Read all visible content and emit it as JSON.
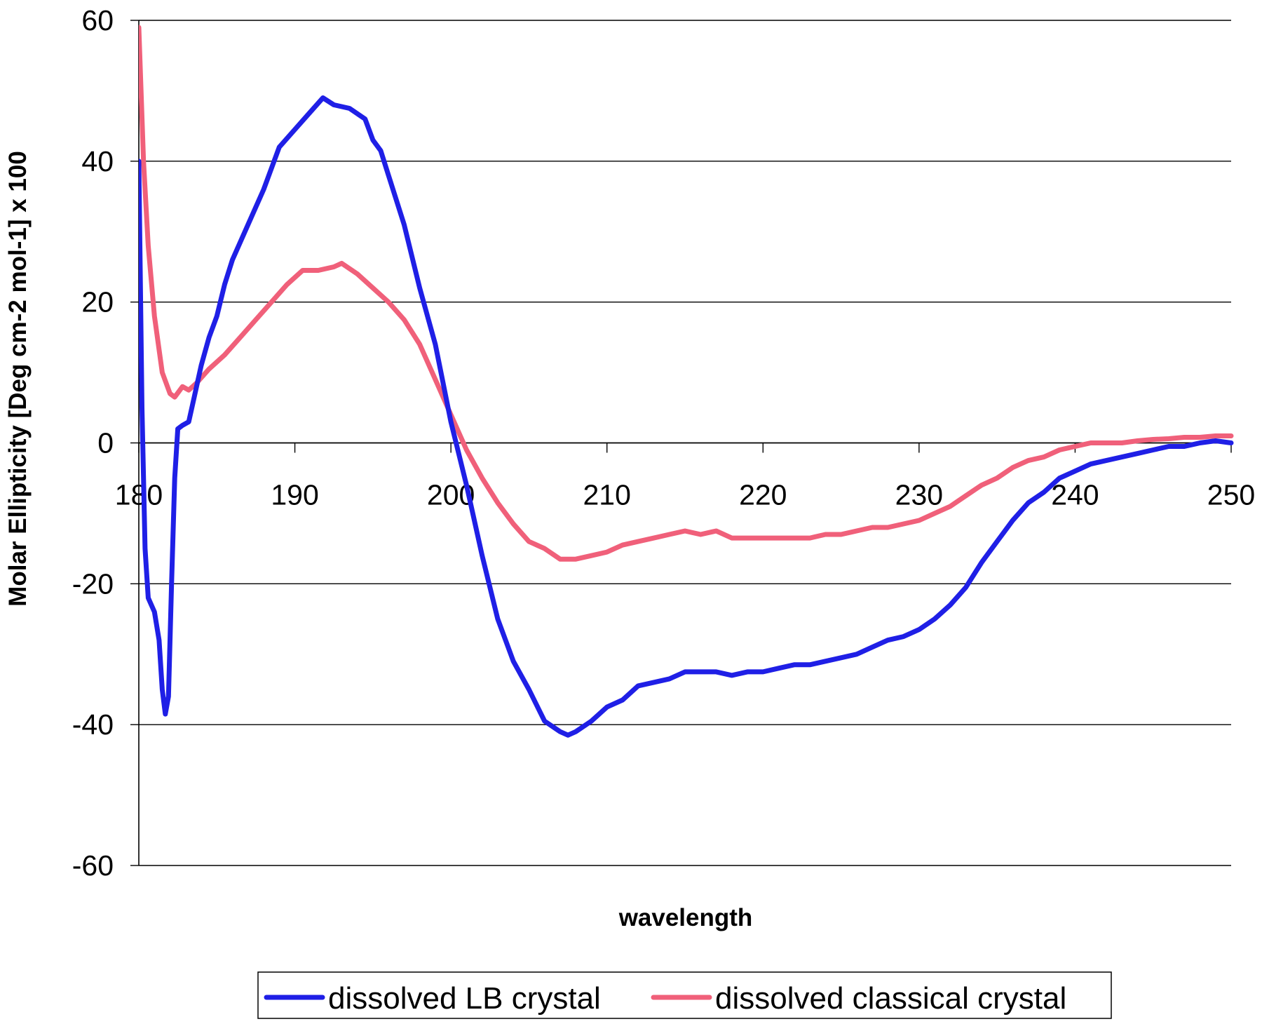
{
  "chart_data": {
    "type": "line",
    "xlabel": "wavelength",
    "ylabel": "Molar Ellipticity [Deg cm-2 mol-1] x 100",
    "xlim": [
      180,
      250
    ],
    "ylim": [
      -60,
      60
    ],
    "x_ticks": [
      "180",
      "190",
      "200",
      "210",
      "220",
      "230",
      "240",
      "250"
    ],
    "y_ticks": [
      "60",
      "40",
      "20",
      "0",
      "-20",
      "-40",
      "-60"
    ],
    "grid": "horizontal",
    "legend_position": "bottom",
    "series": [
      {
        "name": "dissolved LB crystal",
        "color": "#1f1fe6",
        "points": [
          [
            180.0,
            40
          ],
          [
            180.2,
            5
          ],
          [
            180.4,
            -15
          ],
          [
            180.6,
            -22
          ],
          [
            181.0,
            -24
          ],
          [
            181.3,
            -28
          ],
          [
            181.5,
            -35
          ],
          [
            181.7,
            -38.5
          ],
          [
            181.9,
            -36
          ],
          [
            182.1,
            -20
          ],
          [
            182.3,
            -5
          ],
          [
            182.5,
            2
          ],
          [
            182.8,
            2.5
          ],
          [
            183.2,
            3
          ],
          [
            183.5,
            6
          ],
          [
            184.0,
            11
          ],
          [
            184.5,
            15
          ],
          [
            185.0,
            18
          ],
          [
            185.5,
            22.5
          ],
          [
            186.0,
            26
          ],
          [
            187.0,
            31
          ],
          [
            188.0,
            36
          ],
          [
            189.0,
            42
          ],
          [
            190.0,
            44.5
          ],
          [
            191.0,
            47
          ],
          [
            191.8,
            49
          ],
          [
            192.5,
            48
          ],
          [
            193.5,
            47.5
          ],
          [
            194.5,
            46
          ],
          [
            195.0,
            43
          ],
          [
            195.5,
            41.5
          ],
          [
            196.0,
            38
          ],
          [
            197.0,
            31
          ],
          [
            198.0,
            22
          ],
          [
            199.0,
            14
          ],
          [
            200.0,
            3
          ],
          [
            201.0,
            -6
          ],
          [
            202.0,
            -16
          ],
          [
            203.0,
            -25
          ],
          [
            204.0,
            -31
          ],
          [
            205.0,
            -35
          ],
          [
            206.0,
            -39.5
          ],
          [
            207.0,
            -41
          ],
          [
            207.5,
            -41.5
          ],
          [
            208.0,
            -41
          ],
          [
            209.0,
            -39.5
          ],
          [
            210.0,
            -37.5
          ],
          [
            211.0,
            -36.5
          ],
          [
            212.0,
            -34.5
          ],
          [
            213.0,
            -34
          ],
          [
            214.0,
            -33.5
          ],
          [
            215.0,
            -32.5
          ],
          [
            216.0,
            -32.5
          ],
          [
            217.0,
            -32.5
          ],
          [
            218.0,
            -33
          ],
          [
            219.0,
            -32.5
          ],
          [
            220.0,
            -32.5
          ],
          [
            221.0,
            -32
          ],
          [
            222.0,
            -31.5
          ],
          [
            223.0,
            -31.5
          ],
          [
            224.0,
            -31
          ],
          [
            225.0,
            -30.5
          ],
          [
            226.0,
            -30
          ],
          [
            227.0,
            -29
          ],
          [
            228.0,
            -28
          ],
          [
            229.0,
            -27.5
          ],
          [
            230.0,
            -26.5
          ],
          [
            231.0,
            -25
          ],
          [
            232.0,
            -23
          ],
          [
            233.0,
            -20.5
          ],
          [
            234.0,
            -17
          ],
          [
            235.0,
            -14
          ],
          [
            236.0,
            -11
          ],
          [
            237.0,
            -8.5
          ],
          [
            238.0,
            -7
          ],
          [
            239.0,
            -5
          ],
          [
            240.0,
            -4
          ],
          [
            241.0,
            -3
          ],
          [
            242.0,
            -2.5
          ],
          [
            243.0,
            -2
          ],
          [
            244.0,
            -1.5
          ],
          [
            245.0,
            -1
          ],
          [
            246.0,
            -0.5
          ],
          [
            247.0,
            -0.5
          ],
          [
            248.0,
            0
          ],
          [
            249.0,
            0.3
          ],
          [
            250.0,
            0
          ]
        ]
      },
      {
        "name": "dissolved classical crystal",
        "color": "#f0607a",
        "points": [
          [
            180.0,
            59
          ],
          [
            180.3,
            40
          ],
          [
            180.6,
            28
          ],
          [
            181.0,
            18
          ],
          [
            181.5,
            10
          ],
          [
            182.0,
            7
          ],
          [
            182.3,
            6.5
          ],
          [
            182.8,
            8
          ],
          [
            183.2,
            7.5
          ],
          [
            183.7,
            8.5
          ],
          [
            184.5,
            10.5
          ],
          [
            185.5,
            12.5
          ],
          [
            186.5,
            15
          ],
          [
            187.5,
            17.5
          ],
          [
            188.5,
            20
          ],
          [
            189.5,
            22.5
          ],
          [
            190.5,
            24.5
          ],
          [
            191.5,
            24.5
          ],
          [
            192.5,
            25
          ],
          [
            193.0,
            25.5
          ],
          [
            194.0,
            24
          ],
          [
            195.0,
            22
          ],
          [
            196.0,
            20
          ],
          [
            197.0,
            17.5
          ],
          [
            198.0,
            14
          ],
          [
            199.0,
            9
          ],
          [
            200.0,
            4
          ],
          [
            201.0,
            -1
          ],
          [
            202.0,
            -5
          ],
          [
            203.0,
            -8.5
          ],
          [
            204.0,
            -11.5
          ],
          [
            205.0,
            -14
          ],
          [
            206.0,
            -15
          ],
          [
            207.0,
            -16.5
          ],
          [
            208.0,
            -16.5
          ],
          [
            209.0,
            -16
          ],
          [
            210.0,
            -15.5
          ],
          [
            211.0,
            -14.5
          ],
          [
            212.0,
            -14
          ],
          [
            213.0,
            -13.5
          ],
          [
            214.0,
            -13
          ],
          [
            215.0,
            -12.5
          ],
          [
            216.0,
            -13
          ],
          [
            217.0,
            -12.5
          ],
          [
            218.0,
            -13.5
          ],
          [
            219.0,
            -13.5
          ],
          [
            220.0,
            -13.5
          ],
          [
            221.0,
            -13.5
          ],
          [
            222.0,
            -13.5
          ],
          [
            223.0,
            -13.5
          ],
          [
            224.0,
            -13
          ],
          [
            225.0,
            -13
          ],
          [
            226.0,
            -12.5
          ],
          [
            227.0,
            -12
          ],
          [
            228.0,
            -12
          ],
          [
            229.0,
            -11.5
          ],
          [
            230.0,
            -11
          ],
          [
            231.0,
            -10
          ],
          [
            232.0,
            -9
          ],
          [
            233.0,
            -7.5
          ],
          [
            234.0,
            -6
          ],
          [
            235.0,
            -5
          ],
          [
            236.0,
            -3.5
          ],
          [
            237.0,
            -2.5
          ],
          [
            238.0,
            -2
          ],
          [
            239.0,
            -1
          ],
          [
            240.0,
            -0.5
          ],
          [
            241.0,
            0
          ],
          [
            242.0,
            0
          ],
          [
            243.0,
            0
          ],
          [
            244.0,
            0.3
          ],
          [
            245.0,
            0.5
          ],
          [
            246.0,
            0.6
          ],
          [
            247.0,
            0.8
          ],
          [
            248.0,
            0.8
          ],
          [
            249.0,
            1
          ],
          [
            250.0,
            1
          ]
        ]
      }
    ]
  }
}
